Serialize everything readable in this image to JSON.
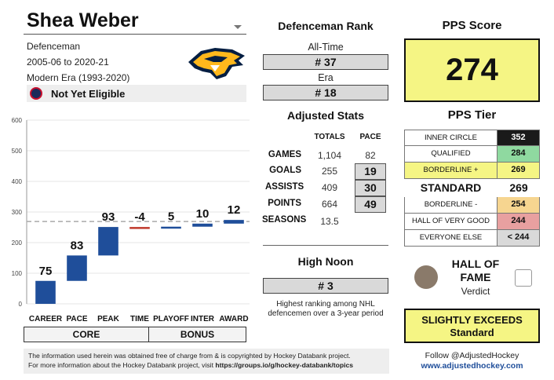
{
  "player": {
    "name": "Shea Weber",
    "position": "Defenceman",
    "seasons_range": "2005-06 to 2020-21",
    "era": "Modern Era (1993-2020)",
    "hof_status": "Not Yet Eligible",
    "team_logo_icon": "nashville-predators-logo"
  },
  "defenceman_rank": {
    "title": "Defenceman Rank",
    "all_time_label": "All-Time",
    "all_time_value": "# 37",
    "era_label": "Era",
    "era_value": "# 18"
  },
  "adjusted_stats": {
    "title": "Adjusted Stats",
    "col_totals": "TOTALS",
    "col_pace": "PACE",
    "rows": [
      {
        "label": "GAMES",
        "total": "1,104",
        "pace": "82"
      },
      {
        "label": "GOALS",
        "total": "255",
        "pace": "19"
      },
      {
        "label": "ASSISTS",
        "total": "409",
        "pace": "30"
      },
      {
        "label": "POINTS",
        "total": "664",
        "pace": "49"
      },
      {
        "label": "SEASONS",
        "total": "13.5",
        "pace": ""
      }
    ]
  },
  "high_noon": {
    "title": "High Noon",
    "value": "# 3",
    "description": "Highest ranking among NHL defencemen over a 3-year period"
  },
  "pps": {
    "title": "PPS Score",
    "value": "274",
    "tier_title": "PPS Tier",
    "tiers": [
      {
        "label": "INNER CIRCLE",
        "value": "352",
        "color": "#1a1a1a"
      },
      {
        "label": "QUALIFIED",
        "value": "284",
        "color": "#8fd9a0"
      },
      {
        "label": "BORDERLINE +",
        "value": "269",
        "color": "#f5f584"
      },
      {
        "label": "STANDARD",
        "value": "269",
        "color": "#ffffff"
      },
      {
        "label": "BORDERLINE -",
        "value": "254",
        "color": "#f6d590"
      },
      {
        "label": "HALL OF VERY GOOD",
        "value": "244",
        "color": "#e8a0a0"
      },
      {
        "label": "EVERYONE ELSE",
        "value": "< 244",
        "color": "#d9d9d9"
      }
    ]
  },
  "hof_verdict": {
    "title_line1": "HALL OF",
    "title_line2": "FAME",
    "subtitle": "Verdict",
    "verdict_line1": "SLIGHTLY EXCEEDS",
    "verdict_line2": "Standard"
  },
  "footer": {
    "note_line1": "The information used herein was obtained free of charge from & is copyrighted by Hockey Databank project.",
    "note_line2_prefix": "For more information about the Hockey Databank project, visit ",
    "note_line2_link": "https://groups.io/g/hockey-databank/topics",
    "follow": "Follow @AdjustedHockey",
    "website": "www.adjustedhockey.com"
  },
  "chart_groups": {
    "core": "CORE",
    "bonus": "BONUS"
  },
  "chart_data": {
    "type": "bar",
    "subtype": "waterfall",
    "categories": [
      "CAREER",
      "PACE",
      "PEAK",
      "TIME",
      "PLAYOFF",
      "INTER",
      "AWARD"
    ],
    "values": [
      75,
      83,
      93,
      -4,
      5,
      10,
      12
    ],
    "value_labels": [
      "75",
      "83",
      "93",
      "-4",
      "5",
      "10",
      "12"
    ],
    "yticks": [
      "0",
      "100",
      "200",
      "300",
      "400",
      "500",
      "600"
    ],
    "ylim": [
      0,
      600
    ],
    "reference_line": 269,
    "bar_color": "#1f4e9a",
    "negative_color": "#c0392b",
    "grid": true
  }
}
